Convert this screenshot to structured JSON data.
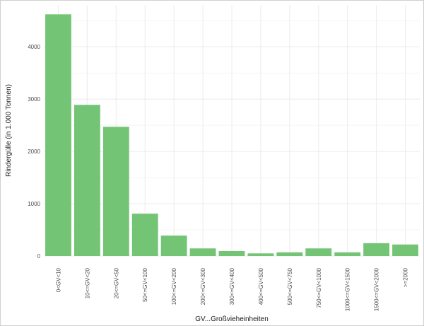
{
  "chart_data": {
    "type": "bar",
    "title": "",
    "xlabel": "GV...Großvieheinheiten",
    "ylabel": "Rindergülle (in 1.000 Tonnen)",
    "categories": [
      "0<GV<10",
      "10<=GV<20",
      "20<=GV<50",
      "50<=GV<100",
      "100<=GV<200",
      "200<=GV<300",
      "300<=GV<400",
      "400<=GV<500",
      "500<=GV<750",
      "750<=GV<1000",
      "1000<=GV<1500",
      "1500<=GV<2000",
      ">=2000"
    ],
    "values": [
      4620,
      2890,
      2470,
      810,
      390,
      145,
      95,
      50,
      70,
      145,
      70,
      245,
      220
    ],
    "ylim": [
      0,
      4800
    ],
    "yticks": [
      0,
      1000,
      2000,
      3000,
      4000
    ],
    "grid": true,
    "legend": "none",
    "bar_color": "#74c476",
    "grid_color": "#ebebeb"
  }
}
